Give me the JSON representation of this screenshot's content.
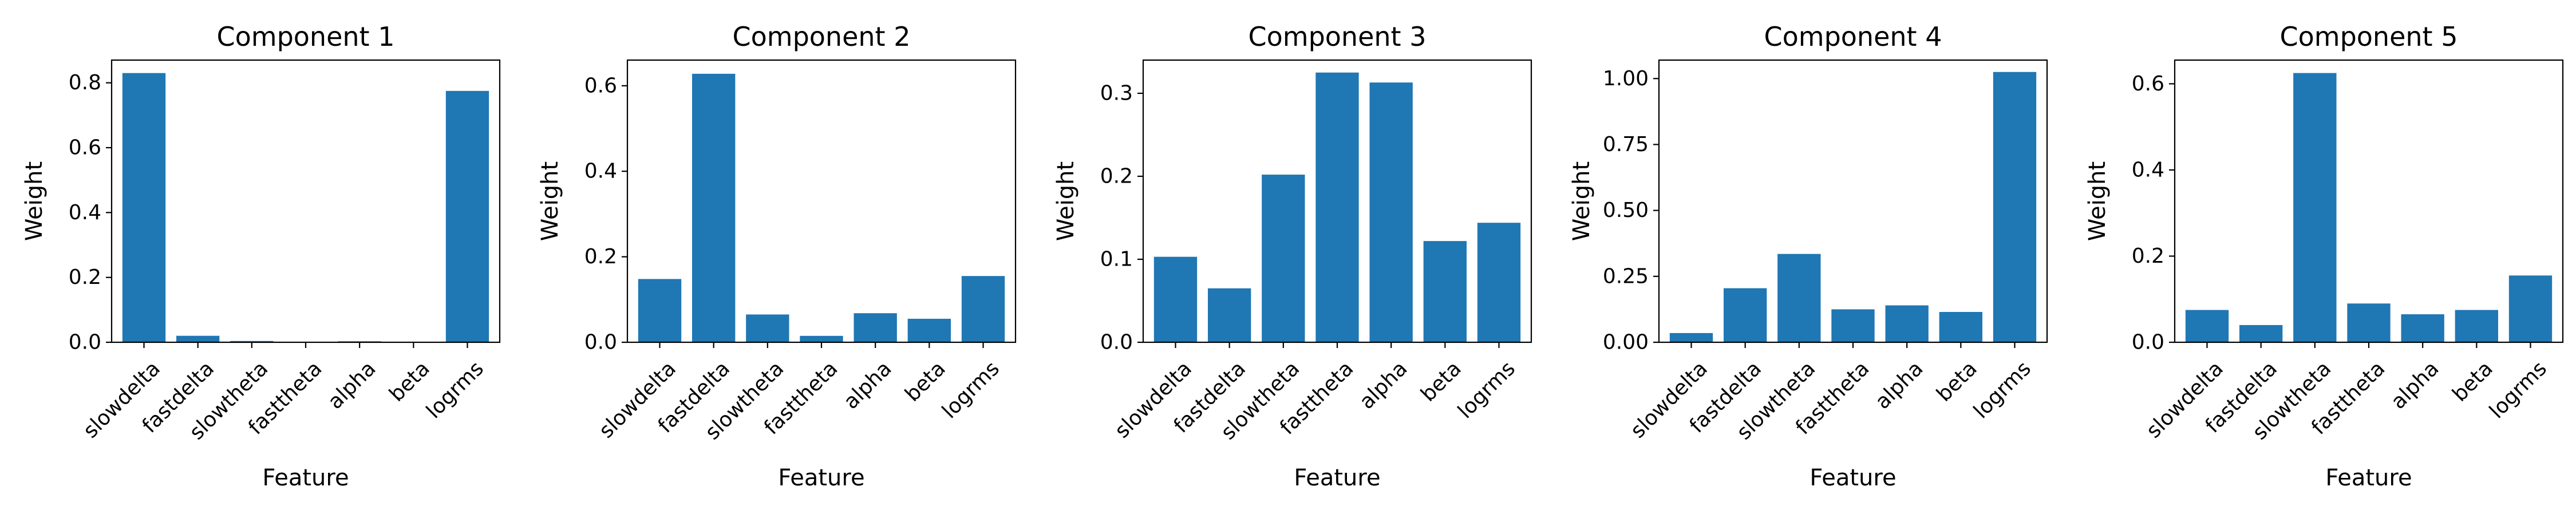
{
  "chart_data": [
    {
      "type": "bar",
      "title": "Component 1",
      "xlabel": "Feature",
      "ylabel": "Weight",
      "categories": [
        "slowdelta",
        "fastdelta",
        "slowtheta",
        "fasttheta",
        "alpha",
        "beta",
        "logrms"
      ],
      "values": [
        0.83,
        0.02,
        0.004,
        0.001,
        0.003,
        0.001,
        0.775
      ],
      "ylim": [
        0,
        0.87
      ],
      "yticks": [
        0.0,
        0.2,
        0.4,
        0.6,
        0.8
      ],
      "ytick_labels": [
        "0.0",
        "0.2",
        "0.4",
        "0.6",
        "0.8"
      ],
      "color": "#1f77b4",
      "grid": false
    },
    {
      "type": "bar",
      "title": "Component 2",
      "xlabel": "Feature",
      "ylabel": "Weight",
      "categories": [
        "slowdelta",
        "fastdelta",
        "slowtheta",
        "fasttheta",
        "alpha",
        "beta",
        "logrms"
      ],
      "values": [
        0.148,
        0.628,
        0.065,
        0.015,
        0.068,
        0.055,
        0.155
      ],
      "ylim": [
        0,
        0.66
      ],
      "yticks": [
        0.0,
        0.2,
        0.4,
        0.6
      ],
      "ytick_labels": [
        "0.0",
        "0.2",
        "0.4",
        "0.6"
      ],
      "color": "#1f77b4",
      "grid": false
    },
    {
      "type": "bar",
      "title": "Component 3",
      "xlabel": "Feature",
      "ylabel": "Weight",
      "categories": [
        "slowdelta",
        "fastdelta",
        "slowtheta",
        "fasttheta",
        "alpha",
        "beta",
        "logrms"
      ],
      "values": [
        0.103,
        0.065,
        0.202,
        0.325,
        0.313,
        0.122,
        0.144
      ],
      "ylim": [
        0,
        0.34
      ],
      "yticks": [
        0.0,
        0.1,
        0.2,
        0.3
      ],
      "ytick_labels": [
        "0.0",
        "0.1",
        "0.2",
        "0.3"
      ],
      "color": "#1f77b4",
      "grid": false
    },
    {
      "type": "bar",
      "title": "Component 4",
      "xlabel": "Feature",
      "ylabel": "Weight",
      "categories": [
        "slowdelta",
        "fastdelta",
        "slowtheta",
        "fasttheta",
        "alpha",
        "beta",
        "logrms"
      ],
      "values": [
        0.035,
        0.205,
        0.335,
        0.125,
        0.14,
        0.115,
        1.025
      ],
      "ylim": [
        0,
        1.07
      ],
      "yticks": [
        0.0,
        0.25,
        0.5,
        0.75,
        1.0
      ],
      "ytick_labels": [
        "0.00",
        "0.25",
        "0.50",
        "0.75",
        "1.00"
      ],
      "color": "#1f77b4",
      "grid": false
    },
    {
      "type": "bar",
      "title": "Component 5",
      "xlabel": "Feature",
      "ylabel": "Weight",
      "categories": [
        "slowdelta",
        "fastdelta",
        "slowtheta",
        "fasttheta",
        "alpha",
        "beta",
        "logrms"
      ],
      "values": [
        0.075,
        0.04,
        0.625,
        0.09,
        0.065,
        0.075,
        0.155
      ],
      "ylim": [
        0,
        0.655
      ],
      "yticks": [
        0.0,
        0.2,
        0.4,
        0.6
      ],
      "ytick_labels": [
        "0.0",
        "0.2",
        "0.4",
        "0.6"
      ],
      "color": "#1f77b4",
      "grid": false
    }
  ]
}
